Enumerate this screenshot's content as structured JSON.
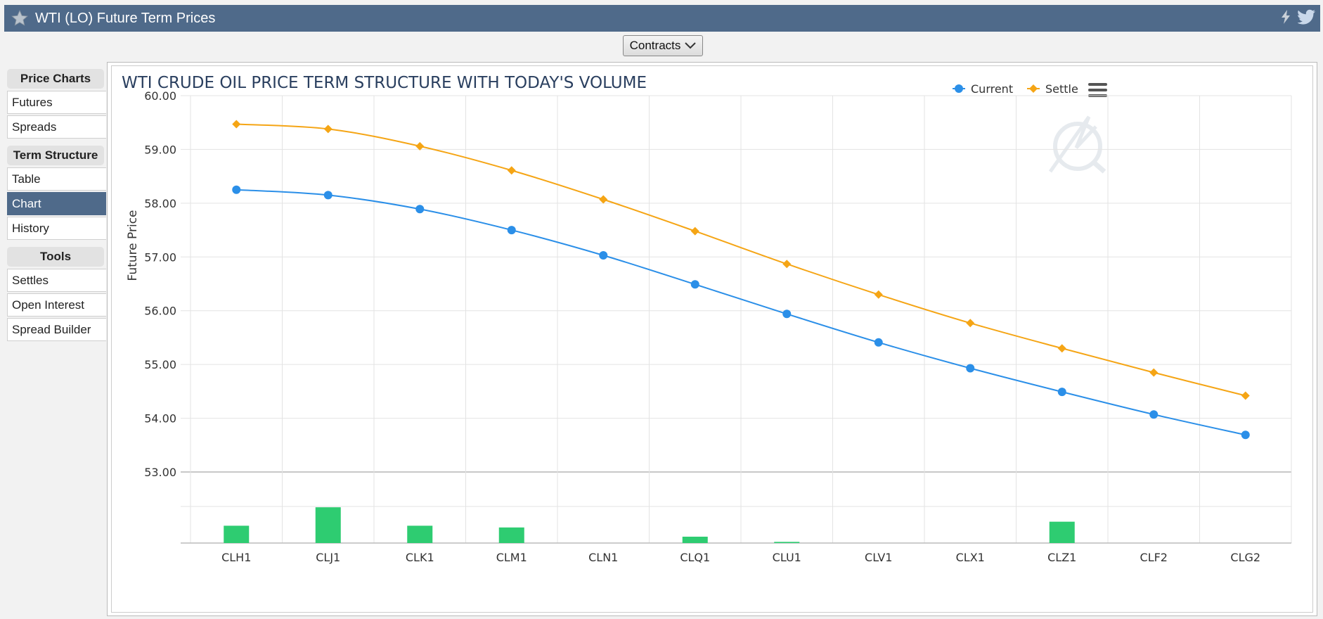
{
  "window": {
    "title": "WTI (LO) Future Term Prices"
  },
  "toolbar": {
    "contracts_label": "Contracts"
  },
  "sidebar": {
    "groups": [
      {
        "title": "Price Charts",
        "items": [
          "Futures",
          "Spreads"
        ]
      },
      {
        "title": "Term Structure",
        "items": [
          "Table",
          "Chart",
          "History"
        ],
        "active": "Chart"
      },
      {
        "title": "Tools",
        "items": [
          "Settles",
          "Open Interest",
          "Spread Builder"
        ]
      }
    ]
  },
  "colors": {
    "current": "#2b8fe8",
    "settle": "#f5a515",
    "volume": "#2ecc71",
    "header": "#4f6a8a"
  },
  "chart_data": {
    "type": "line",
    "title": "WTI CRUDE OIL PRICE TERM STRUCTURE WITH TODAY'S VOLUME",
    "ylabel": "Future Price",
    "xlabel": "",
    "ylim": [
      53.0,
      60.0
    ],
    "yticks": [
      "60.00",
      "59.00",
      "58.00",
      "57.00",
      "56.00",
      "55.00",
      "54.00",
      "53.00"
    ],
    "categories": [
      "CLH1",
      "CLJ1",
      "CLK1",
      "CLM1",
      "CLN1",
      "CLQ1",
      "CLU1",
      "CLV1",
      "CLX1",
      "CLZ1",
      "CLF2",
      "CLG2"
    ],
    "legend": [
      "Current",
      "Settle"
    ],
    "legend_position": "top-right",
    "series": [
      {
        "name": "Current",
        "values": [
          58.25,
          58.15,
          57.89,
          57.5,
          57.03,
          56.49,
          55.94,
          55.41,
          54.93,
          54.49,
          54.07,
          53.69
        ]
      },
      {
        "name": "Settle",
        "values": [
          59.47,
          59.38,
          59.06,
          58.61,
          58.07,
          57.48,
          56.87,
          56.3,
          55.77,
          55.3,
          54.85,
          54.42
        ]
      }
    ],
    "volume": {
      "values": [
        30,
        62,
        30,
        27,
        0,
        11,
        2,
        0,
        0,
        37,
        0,
        0
      ],
      "max": 100
    }
  }
}
